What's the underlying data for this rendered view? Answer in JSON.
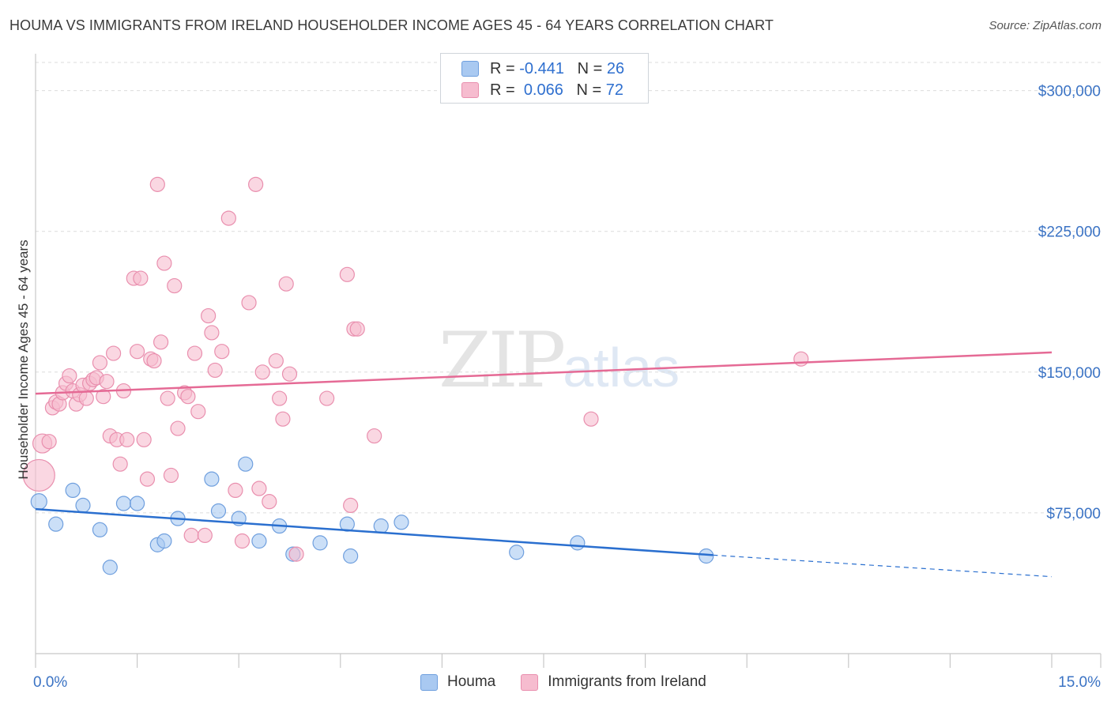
{
  "header": {
    "title": "HOUMA VS IMMIGRANTS FROM IRELAND HOUSEHOLDER INCOME AGES 45 - 64 YEARS CORRELATION CHART",
    "source": "Source: ZipAtlas.com"
  },
  "legend": {
    "rows": [
      {
        "r_label": "R =",
        "r_value": "-0.441",
        "n_label": "N =",
        "n_value": "26"
      },
      {
        "r_label": "R =",
        "r_value": "0.066",
        "n_label": "N =",
        "n_value": "72"
      }
    ],
    "bottom": [
      "Houma",
      "Immigrants from Ireland"
    ]
  },
  "watermark": {
    "zip": "ZIP",
    "atlas": "atlas"
  },
  "colors": {
    "houma_fill": "#a9c9f1",
    "houma_stroke": "#6f9fde",
    "houma_line": "#2a6fcf",
    "ireland_fill": "#f6bccf",
    "ireland_stroke": "#e98fae",
    "ireland_line": "#e56a95",
    "axis_text": "#3b73c4",
    "grid": "#dcdcdc"
  },
  "chart_data": {
    "type": "scatter",
    "title": "HOUMA VS IMMIGRANTS FROM IRELAND HOUSEHOLDER INCOME AGES 45 - 64 YEARS CORRELATION CHART",
    "xlabel": "",
    "ylabel": "Householder Income Ages 45 - 64 years",
    "xlim": [
      0,
      15
    ],
    "ylim": [
      0,
      315000
    ],
    "x_tick_labels": [
      "0.0%",
      "15.0%"
    ],
    "y_ticks": [
      75000,
      150000,
      225000,
      300000
    ],
    "y_tick_labels": [
      "$75,000",
      "$150,000",
      "$225,000",
      "$300,000"
    ],
    "grid": true,
    "legend_position": "top-center",
    "series": [
      {
        "name": "Houma",
        "points": [
          [
            0.05,
            81000
          ],
          [
            0.3,
            69000
          ],
          [
            0.55,
            87000
          ],
          [
            0.7,
            79000
          ],
          [
            0.95,
            66000
          ],
          [
            1.1,
            46000
          ],
          [
            1.3,
            80000
          ],
          [
            1.5,
            80000
          ],
          [
            1.8,
            58000
          ],
          [
            1.9,
            60000
          ],
          [
            2.1,
            72000
          ],
          [
            2.6,
            93000
          ],
          [
            2.7,
            76000
          ],
          [
            3.0,
            72000
          ],
          [
            3.1,
            101000
          ],
          [
            3.3,
            60000
          ],
          [
            3.6,
            68000
          ],
          [
            3.8,
            53000
          ],
          [
            4.2,
            59000
          ],
          [
            4.6,
            69000
          ],
          [
            4.65,
            52000
          ],
          [
            5.1,
            68000
          ],
          [
            5.4,
            70000
          ],
          [
            7.1,
            54000
          ],
          [
            8.0,
            59000
          ],
          [
            9.9,
            52000
          ]
        ],
        "trend": {
          "x0": 0,
          "y0": 77000,
          "x1": 10.0,
          "y1": 52500,
          "dashed_to_x": 15,
          "dashed_to_y": 41000
        }
      },
      {
        "name": "Immigrants from Ireland",
        "points": [
          [
            0.05,
            95000
          ],
          [
            0.1,
            112000
          ],
          [
            0.2,
            113000
          ],
          [
            0.25,
            131000
          ],
          [
            0.3,
            134000
          ],
          [
            0.35,
            133000
          ],
          [
            0.4,
            139000
          ],
          [
            0.45,
            144000
          ],
          [
            0.5,
            148000
          ],
          [
            0.55,
            140000
          ],
          [
            0.6,
            133000
          ],
          [
            0.65,
            138000
          ],
          [
            0.7,
            143000
          ],
          [
            0.75,
            136000
          ],
          [
            0.8,
            144000
          ],
          [
            0.85,
            146000
          ],
          [
            0.9,
            147000
          ],
          [
            0.95,
            155000
          ],
          [
            1.0,
            137000
          ],
          [
            1.05,
            145000
          ],
          [
            1.1,
            116000
          ],
          [
            1.15,
            160000
          ],
          [
            1.2,
            114000
          ],
          [
            1.25,
            101000
          ],
          [
            1.3,
            140000
          ],
          [
            1.35,
            114000
          ],
          [
            1.45,
            200000
          ],
          [
            1.5,
            161000
          ],
          [
            1.55,
            200000
          ],
          [
            1.6,
            114000
          ],
          [
            1.65,
            93000
          ],
          [
            1.7,
            157000
          ],
          [
            1.75,
            156000
          ],
          [
            1.8,
            250000
          ],
          [
            1.85,
            166000
          ],
          [
            1.9,
            208000
          ],
          [
            1.95,
            136000
          ],
          [
            2.0,
            95000
          ],
          [
            2.05,
            196000
          ],
          [
            2.1,
            120000
          ],
          [
            2.2,
            139000
          ],
          [
            2.25,
            137000
          ],
          [
            2.3,
            63000
          ],
          [
            2.35,
            160000
          ],
          [
            2.4,
            129000
          ],
          [
            2.5,
            63000
          ],
          [
            2.55,
            180000
          ],
          [
            2.6,
            171000
          ],
          [
            2.65,
            151000
          ],
          [
            2.75,
            161000
          ],
          [
            2.85,
            232000
          ],
          [
            2.95,
            87000
          ],
          [
            3.05,
            60000
          ],
          [
            3.15,
            187000
          ],
          [
            3.25,
            250000
          ],
          [
            3.3,
            88000
          ],
          [
            3.35,
            150000
          ],
          [
            3.45,
            81000
          ],
          [
            3.55,
            156000
          ],
          [
            3.6,
            136000
          ],
          [
            3.65,
            125000
          ],
          [
            3.7,
            197000
          ],
          [
            3.75,
            149000
          ],
          [
            3.85,
            53000
          ],
          [
            4.3,
            136000
          ],
          [
            4.6,
            202000
          ],
          [
            4.65,
            79000
          ],
          [
            4.7,
            173000
          ],
          [
            4.75,
            173000
          ],
          [
            5.0,
            116000
          ],
          [
            8.2,
            125000
          ],
          [
            11.3,
            157000
          ]
        ],
        "trend": {
          "x0": 0,
          "y0": 138500,
          "x1": 15,
          "y1": 160500
        }
      }
    ]
  }
}
